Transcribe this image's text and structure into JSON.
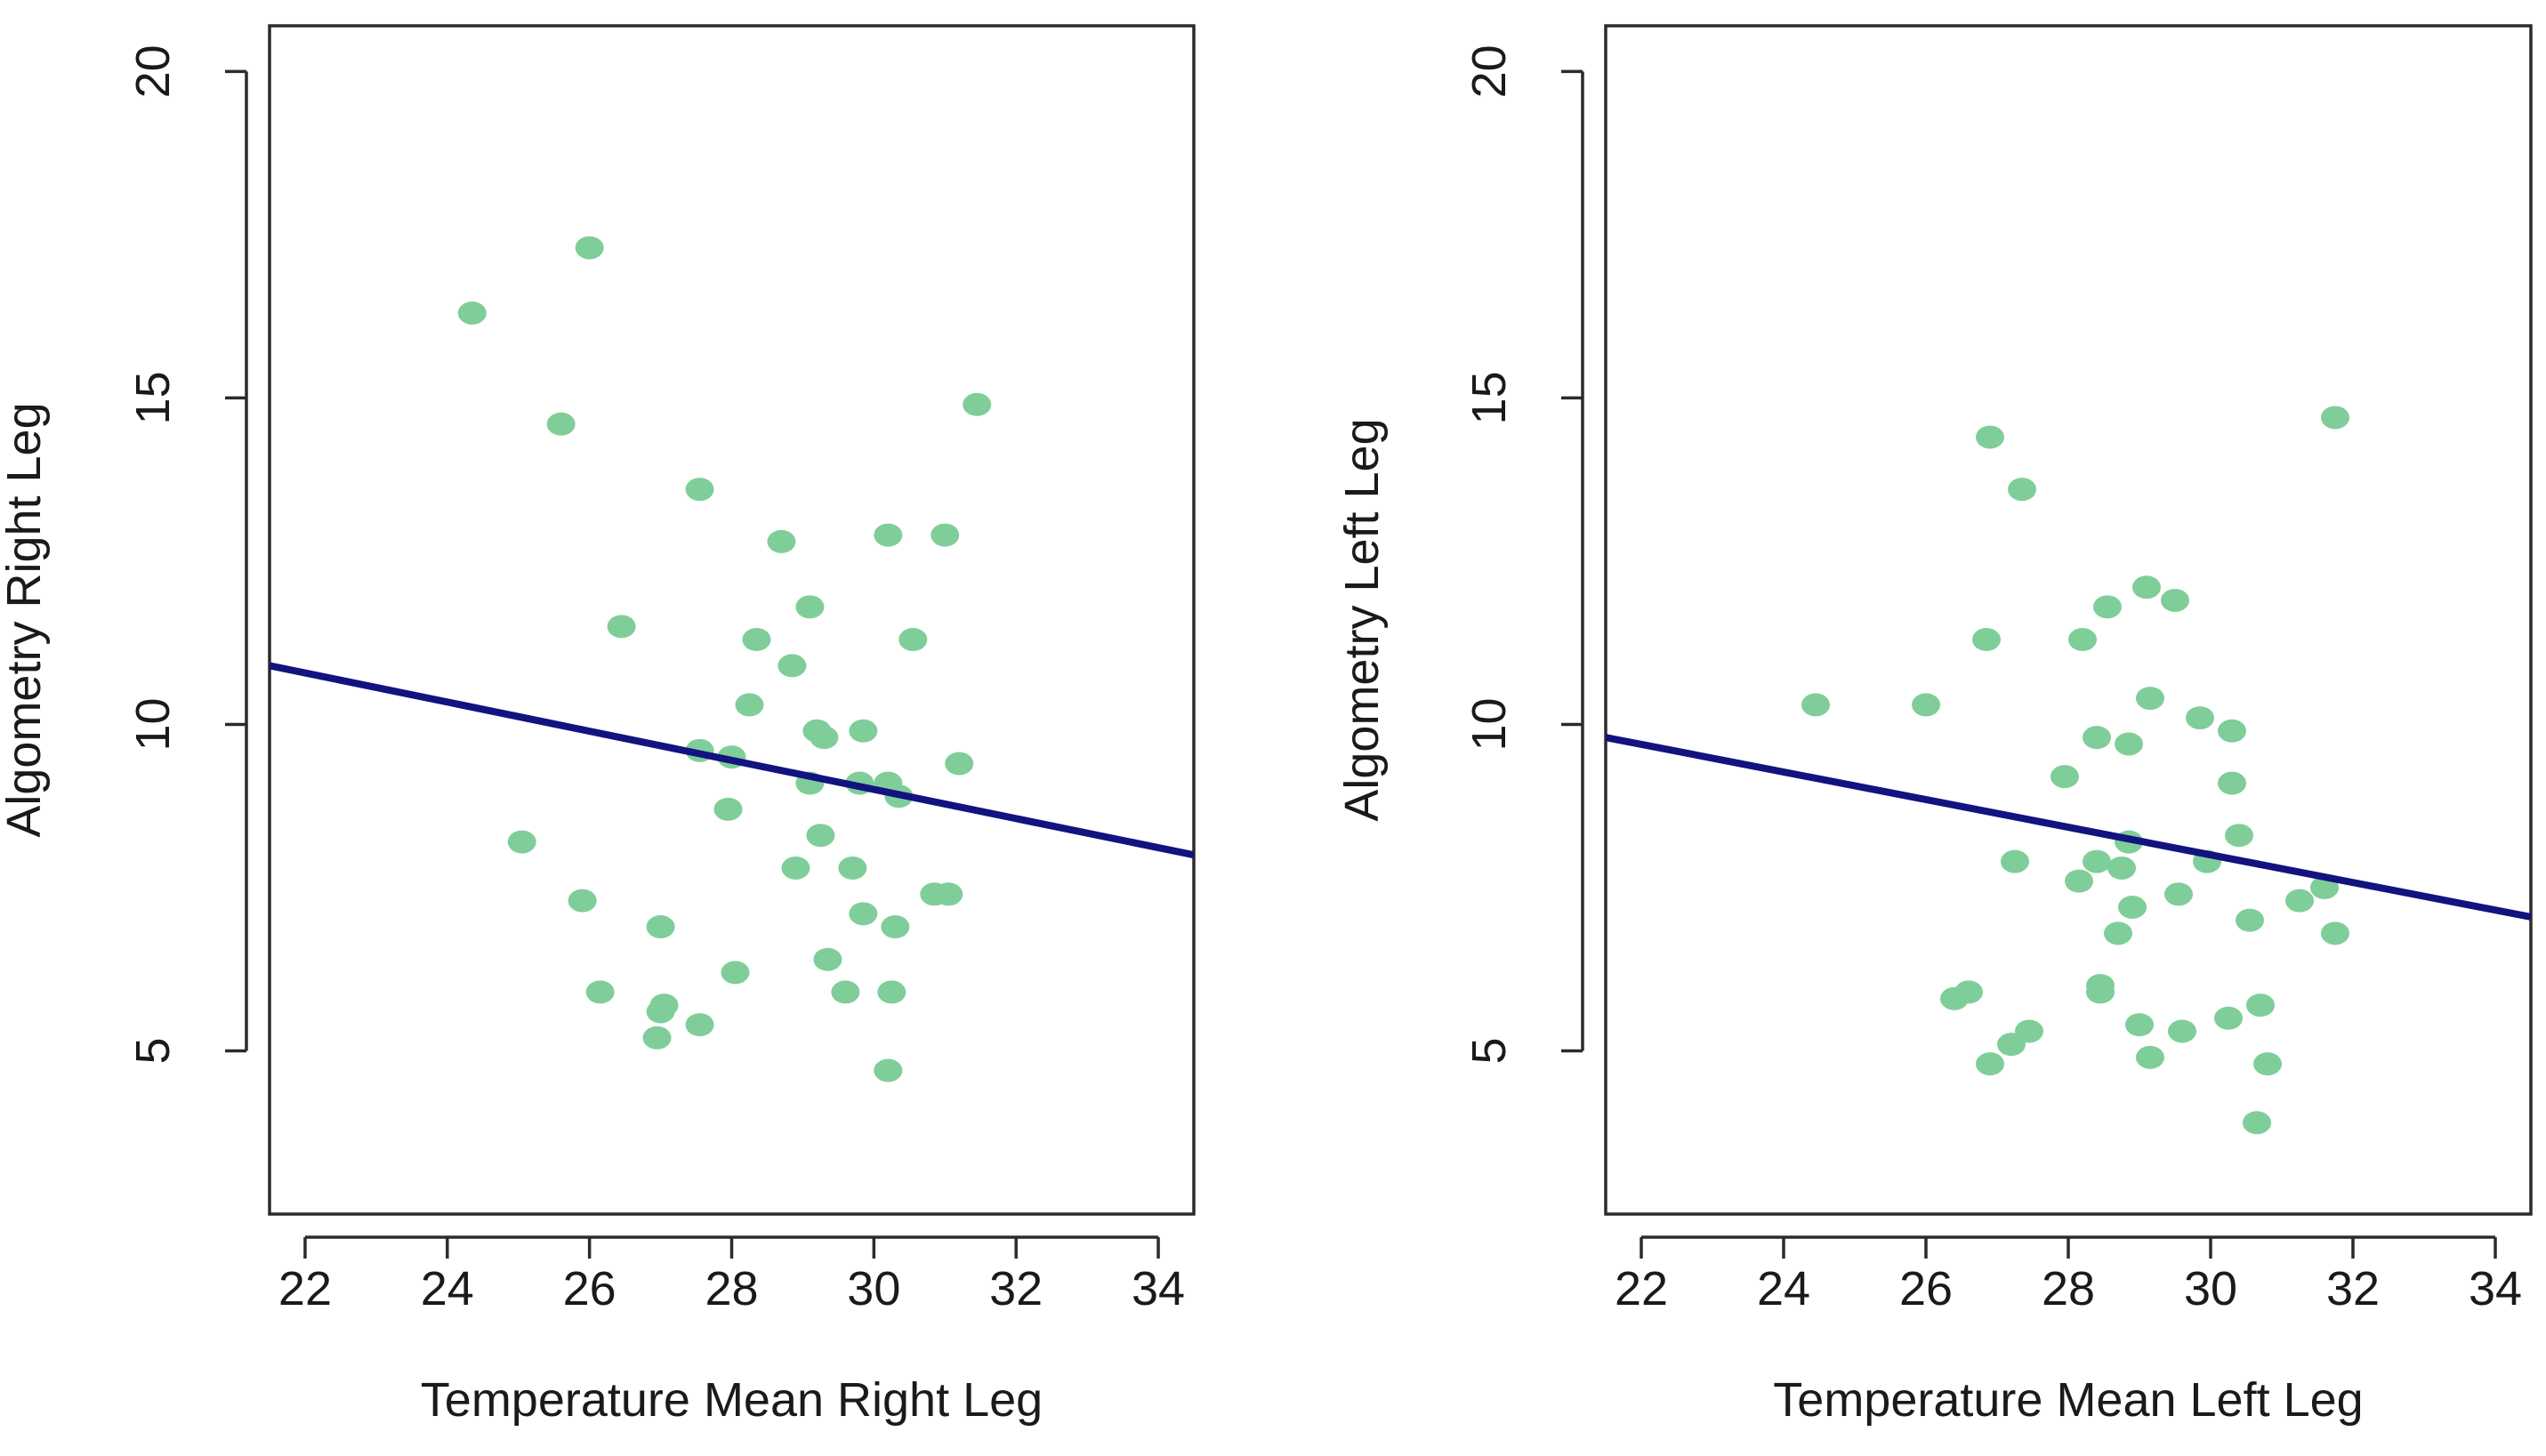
{
  "colors": {
    "point": "#7fce99",
    "fit_line": "#12137f",
    "axis": "#2b2b2b",
    "background": "#ffffff"
  },
  "chart_data": [
    {
      "type": "scatter",
      "title": "",
      "xlabel": "Temperature Mean Right Leg",
      "ylabel": "Algometry Right Leg",
      "xlim": [
        21.5,
        34.5
      ],
      "ylim": [
        2.5,
        20.7
      ],
      "xticks": [
        22,
        24,
        26,
        28,
        30,
        32,
        34
      ],
      "xtick_labels": [
        "22",
        "24",
        "26",
        "28",
        "30",
        "32",
        "34"
      ],
      "yticks": [
        5,
        10,
        15,
        20
      ],
      "ytick_labels": [
        "5",
        "10",
        "15",
        "20"
      ],
      "fit_line": {
        "x": [
          21.5,
          34.5
        ],
        "y": [
          10.9,
          8.0
        ]
      },
      "points": [
        {
          "x": 24.35,
          "y": 16.3
        },
        {
          "x": 26.0,
          "y": 17.3
        },
        {
          "x": 25.6,
          "y": 14.6
        },
        {
          "x": 27.55,
          "y": 13.6
        },
        {
          "x": 31.45,
          "y": 14.9
        },
        {
          "x": 28.7,
          "y": 12.8
        },
        {
          "x": 30.2,
          "y": 12.9
        },
        {
          "x": 31.0,
          "y": 12.9
        },
        {
          "x": 29.1,
          "y": 11.8
        },
        {
          "x": 26.45,
          "y": 11.5
        },
        {
          "x": 28.35,
          "y": 11.3
        },
        {
          "x": 30.55,
          "y": 11.3
        },
        {
          "x": 28.85,
          "y": 10.9
        },
        {
          "x": 28.25,
          "y": 10.3
        },
        {
          "x": 29.2,
          "y": 9.9
        },
        {
          "x": 29.3,
          "y": 9.8
        },
        {
          "x": 29.85,
          "y": 9.9
        },
        {
          "x": 27.55,
          "y": 9.6
        },
        {
          "x": 28.0,
          "y": 9.5
        },
        {
          "x": 31.2,
          "y": 9.4
        },
        {
          "x": 29.1,
          "y": 9.1
        },
        {
          "x": 29.8,
          "y": 9.1
        },
        {
          "x": 30.2,
          "y": 9.1
        },
        {
          "x": 30.35,
          "y": 8.9
        },
        {
          "x": 27.95,
          "y": 8.7
        },
        {
          "x": 25.05,
          "y": 8.2
        },
        {
          "x": 29.25,
          "y": 8.3
        },
        {
          "x": 28.9,
          "y": 7.8
        },
        {
          "x": 29.7,
          "y": 7.8
        },
        {
          "x": 30.85,
          "y": 7.4
        },
        {
          "x": 31.05,
          "y": 7.4
        },
        {
          "x": 25.9,
          "y": 7.3
        },
        {
          "x": 29.85,
          "y": 7.1
        },
        {
          "x": 27.0,
          "y": 6.9
        },
        {
          "x": 30.3,
          "y": 6.9
        },
        {
          "x": 29.35,
          "y": 6.4
        },
        {
          "x": 28.05,
          "y": 6.2
        },
        {
          "x": 26.15,
          "y": 5.9
        },
        {
          "x": 29.6,
          "y": 5.9
        },
        {
          "x": 30.25,
          "y": 5.9
        },
        {
          "x": 27.05,
          "y": 5.7
        },
        {
          "x": 27.0,
          "y": 5.6
        },
        {
          "x": 27.55,
          "y": 5.4
        },
        {
          "x": 26.95,
          "y": 5.2
        },
        {
          "x": 30.2,
          "y": 4.7
        }
      ]
    },
    {
      "type": "scatter",
      "title": "",
      "xlabel": "Temperature Mean Left Leg",
      "ylabel": "Algometry Left Leg",
      "xlim": [
        21.5,
        34.5
      ],
      "ylim": [
        2.5,
        20.7
      ],
      "xticks": [
        22,
        24,
        26,
        28,
        30,
        32,
        34
      ],
      "xtick_labels": [
        "22",
        "24",
        "26",
        "28",
        "30",
        "32",
        "34"
      ],
      "yticks": [
        5,
        10,
        15,
        20
      ],
      "ytick_labels": [
        "5",
        "10",
        "15",
        "20"
      ],
      "fit_line": {
        "x": [
          21.5,
          34.5
        ],
        "y": [
          9.8,
          7.05
        ]
      },
      "points": [
        {
          "x": 26.9,
          "y": 14.4
        },
        {
          "x": 31.75,
          "y": 14.7
        },
        {
          "x": 27.35,
          "y": 13.6
        },
        {
          "x": 29.1,
          "y": 12.1
        },
        {
          "x": 29.5,
          "y": 11.9
        },
        {
          "x": 28.55,
          "y": 11.8
        },
        {
          "x": 26.85,
          "y": 11.3
        },
        {
          "x": 28.2,
          "y": 11.3
        },
        {
          "x": 24.45,
          "y": 10.3
        },
        {
          "x": 26.0,
          "y": 10.3
        },
        {
          "x": 29.15,
          "y": 10.4
        },
        {
          "x": 29.85,
          "y": 10.1
        },
        {
          "x": 30.3,
          "y": 9.9
        },
        {
          "x": 28.4,
          "y": 9.8
        },
        {
          "x": 28.85,
          "y": 9.7
        },
        {
          "x": 27.95,
          "y": 9.2
        },
        {
          "x": 30.3,
          "y": 9.1
        },
        {
          "x": 30.4,
          "y": 8.3
        },
        {
          "x": 28.85,
          "y": 8.2
        },
        {
          "x": 27.25,
          "y": 7.9
        },
        {
          "x": 28.4,
          "y": 7.9
        },
        {
          "x": 28.75,
          "y": 7.8
        },
        {
          "x": 29.95,
          "y": 7.9
        },
        {
          "x": 28.15,
          "y": 7.6
        },
        {
          "x": 31.6,
          "y": 7.5
        },
        {
          "x": 29.55,
          "y": 7.4
        },
        {
          "x": 31.25,
          "y": 7.3
        },
        {
          "x": 28.9,
          "y": 7.2
        },
        {
          "x": 30.55,
          "y": 7.0
        },
        {
          "x": 28.7,
          "y": 6.8
        },
        {
          "x": 31.75,
          "y": 6.8
        },
        {
          "x": 28.45,
          "y": 6.0
        },
        {
          "x": 28.45,
          "y": 5.9
        },
        {
          "x": 26.6,
          "y": 5.9
        },
        {
          "x": 26.4,
          "y": 5.8
        },
        {
          "x": 30.7,
          "y": 5.7
        },
        {
          "x": 30.25,
          "y": 5.5
        },
        {
          "x": 29.0,
          "y": 5.4
        },
        {
          "x": 27.45,
          "y": 5.3
        },
        {
          "x": 29.6,
          "y": 5.3
        },
        {
          "x": 27.2,
          "y": 5.1
        },
        {
          "x": 29.15,
          "y": 4.9
        },
        {
          "x": 26.9,
          "y": 4.8
        },
        {
          "x": 30.8,
          "y": 4.8
        },
        {
          "x": 30.65,
          "y": 3.9
        }
      ]
    }
  ]
}
